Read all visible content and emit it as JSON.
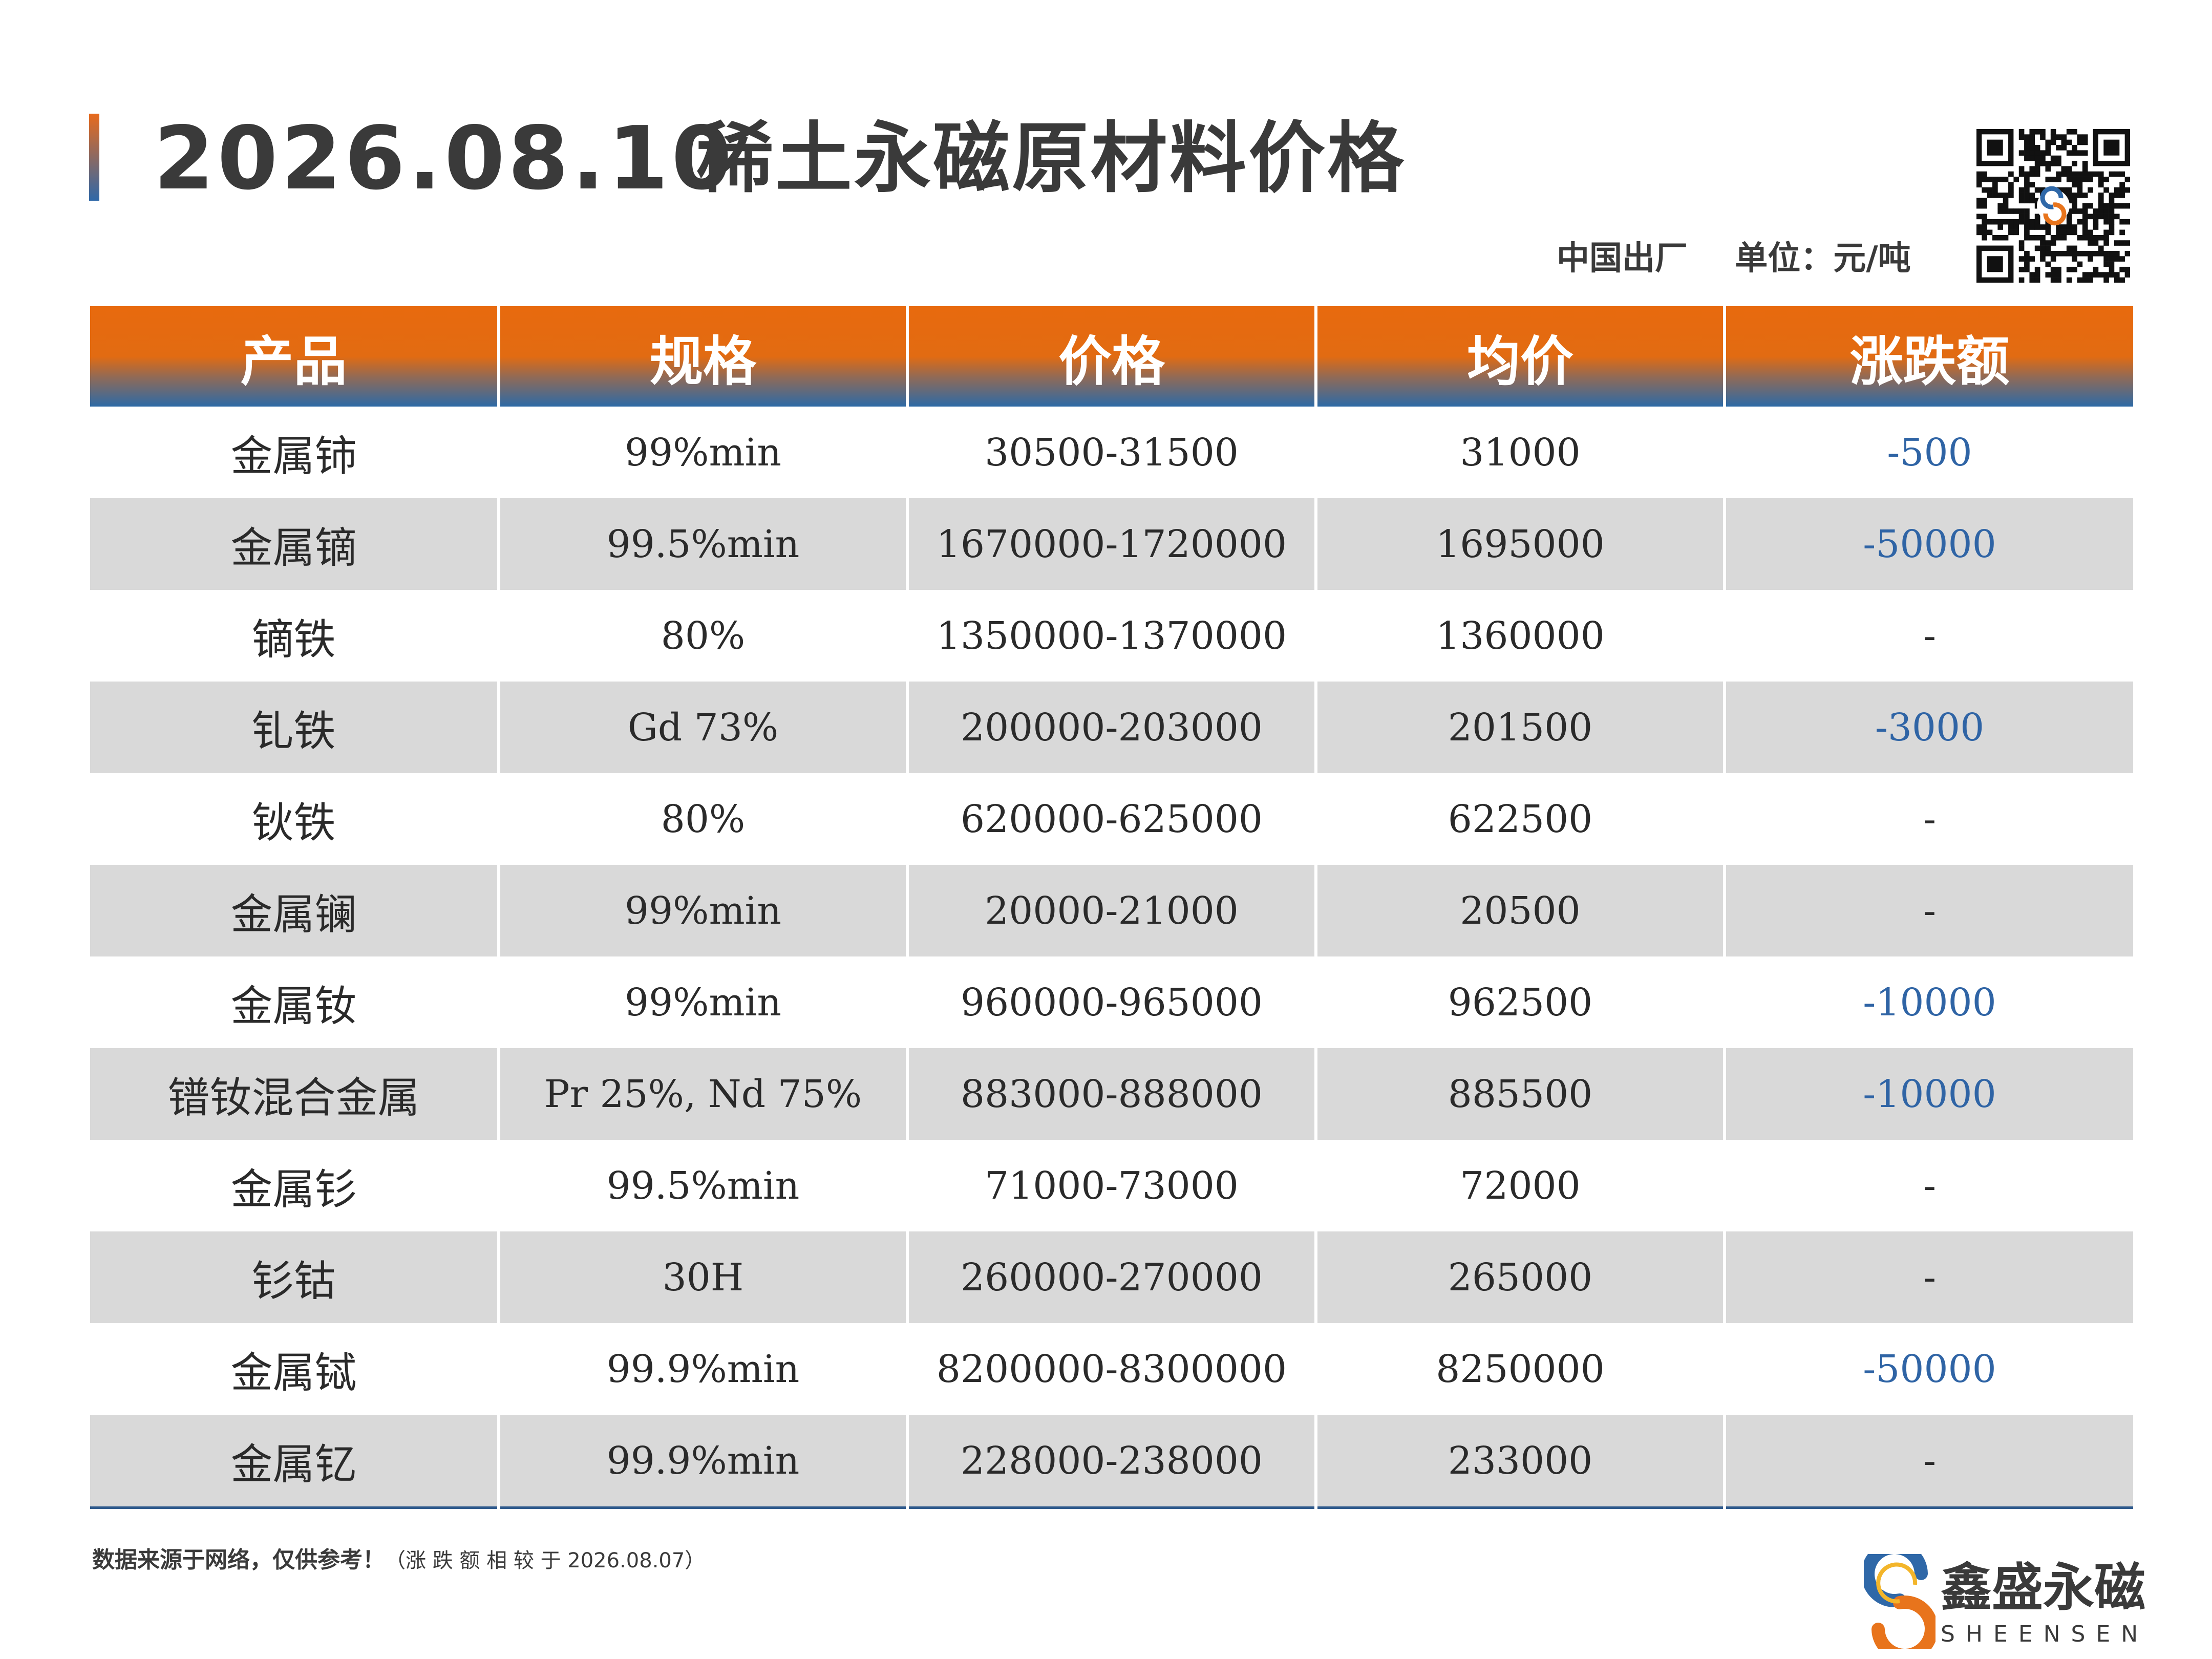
{
  "header": {
    "date": "2026.08.10",
    "title": "稀土永磁原材料价格",
    "origin": "中国出厂",
    "unit": "单位：元/吨"
  },
  "table": {
    "columns": [
      "产品",
      "规格",
      "价格",
      "均价",
      "涨跌额"
    ],
    "rows": [
      {
        "product": "金属铈",
        "spec": "99%min",
        "price": "30500-31500",
        "avg": "31000",
        "change": "-500"
      },
      {
        "product": "金属镝",
        "spec": "99.5%min",
        "price": "1670000-1720000",
        "avg": "1695000",
        "change": "-50000"
      },
      {
        "product": "镝铁",
        "spec": "80%",
        "price": "1350000-1370000",
        "avg": "1360000",
        "change": "-"
      },
      {
        "product": "钆铁",
        "spec": "Gd 73%",
        "price": "200000-203000",
        "avg": "201500",
        "change": "-3000"
      },
      {
        "product": "钬铁",
        "spec": "80%",
        "price": "620000-625000",
        "avg": "622500",
        "change": "-"
      },
      {
        "product": "金属镧",
        "spec": "99%min",
        "price": "20000-21000",
        "avg": "20500",
        "change": "-"
      },
      {
        "product": "金属钕",
        "spec": "99%min",
        "price": "960000-965000",
        "avg": "962500",
        "change": "-10000"
      },
      {
        "product": "镨钕混合金属",
        "spec": "Pr 25%, Nd 75%",
        "price": "883000-888000",
        "avg": "885500",
        "change": "-10000"
      },
      {
        "product": "金属钐",
        "spec": "99.5%min",
        "price": "71000-73000",
        "avg": "72000",
        "change": "-"
      },
      {
        "product": "钐钴",
        "spec": "30H",
        "price": "260000-270000",
        "avg": "265000",
        "change": "-"
      },
      {
        "product": "金属铽",
        "spec": "99.9%min",
        "price": "8200000-8300000",
        "avg": "8250000",
        "change": "-50000"
      },
      {
        "product": "金属钇",
        "spec": "99.9%min",
        "price": "228000-238000",
        "avg": "233000",
        "change": "-"
      }
    ]
  },
  "footer": {
    "note": "数据来源于网络，仅供参考！",
    "note_detail": "（涨 跌 额 相 较 于 2026.08.07）",
    "brand_name": "鑫盛永磁",
    "brand_sub": "SHEENSEN"
  },
  "colors": {
    "header_orange": "#e86a0e",
    "header_blue": "#2d6aa6",
    "change_blue": "#2f64a5",
    "row_alt": "#d9d9d9",
    "text_dark": "#3a3a3a"
  }
}
